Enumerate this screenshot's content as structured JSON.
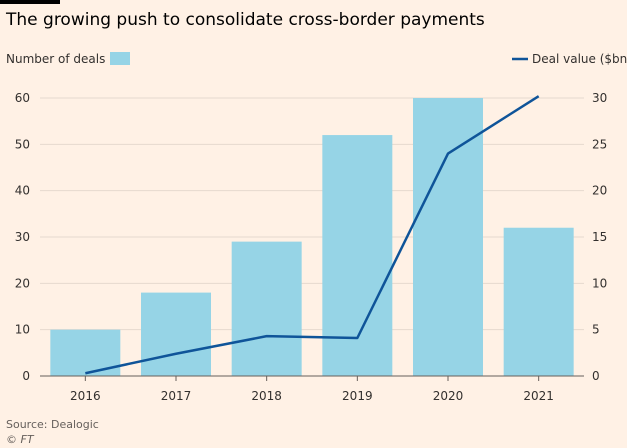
{
  "title": "The growing push to consolidate cross-border payments",
  "source": "Source: Dealogic",
  "copyright": "© FT",
  "chart_data": {
    "type": "bar",
    "categories": [
      "2016",
      "2017",
      "2018",
      "2019",
      "2020",
      "2021"
    ],
    "series": [
      {
        "name": "Number of deals",
        "type": "bar",
        "axis": "left",
        "color": "#96d4e6",
        "values": [
          10,
          18,
          29,
          52,
          60,
          32
        ]
      },
      {
        "name": "Deal value ($bn)",
        "type": "line",
        "axis": "right",
        "color": "#0f5499",
        "values": [
          0.3,
          2.4,
          4.3,
          4.1,
          24,
          30.2
        ]
      }
    ],
    "y_left": {
      "ylim": [
        0,
        60
      ],
      "ticks": [
        "0",
        "10",
        "20",
        "30",
        "40",
        "50",
        "60"
      ]
    },
    "y_right": {
      "ylim": [
        0,
        30
      ],
      "ticks": [
        "0",
        "5",
        "10",
        "15",
        "20",
        "25",
        "30"
      ]
    },
    "legend": {
      "placement": "top"
    },
    "grid": true
  }
}
